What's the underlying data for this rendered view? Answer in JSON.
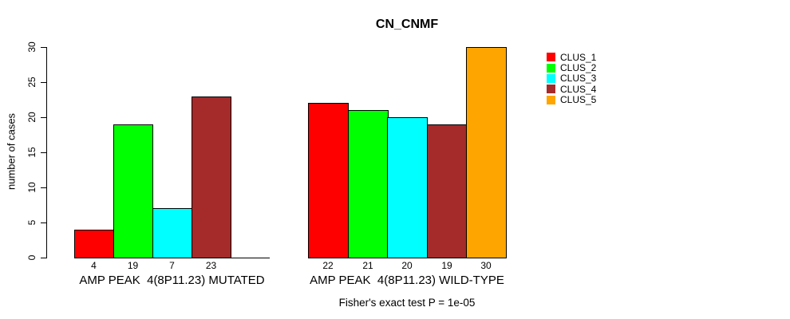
{
  "title": "CN_CNMF",
  "chart_data": {
    "type": "bar",
    "title": "CN_CNMF",
    "ylabel": "number of cases",
    "xlabel": "",
    "ylim": [
      0,
      30
    ],
    "yticks": [
      0,
      5,
      10,
      15,
      20,
      25,
      30
    ],
    "grid": false,
    "legend_position": "top-right-outside",
    "legend": [
      {
        "label": "CLUS_1",
        "color": "#ff0000"
      },
      {
        "label": "CLUS_2",
        "color": "#00ff00"
      },
      {
        "label": "CLUS_3",
        "color": "#00ffff"
      },
      {
        "label": "CLUS_4",
        "color": "#a52a2a"
      },
      {
        "label": "CLUS_5",
        "color": "#ffa500"
      }
    ],
    "series_names": [
      "CLUS_1",
      "CLUS_2",
      "CLUS_3",
      "CLUS_4",
      "CLUS_5"
    ],
    "groups": [
      {
        "label": "AMP PEAK  4(8P11.23) MUTATED",
        "values": [
          4,
          19,
          7,
          23,
          0
        ],
        "value_labels": [
          "4",
          "19",
          "7",
          "23",
          ""
        ]
      },
      {
        "label": "AMP PEAK  4(8P11.23) WILD-TYPE",
        "values": [
          22,
          21,
          20,
          19,
          30
        ],
        "value_labels": [
          "22",
          "21",
          "20",
          "19",
          "30"
        ]
      }
    ],
    "subtitle": "Fisher's exact test P = 1e-05"
  }
}
